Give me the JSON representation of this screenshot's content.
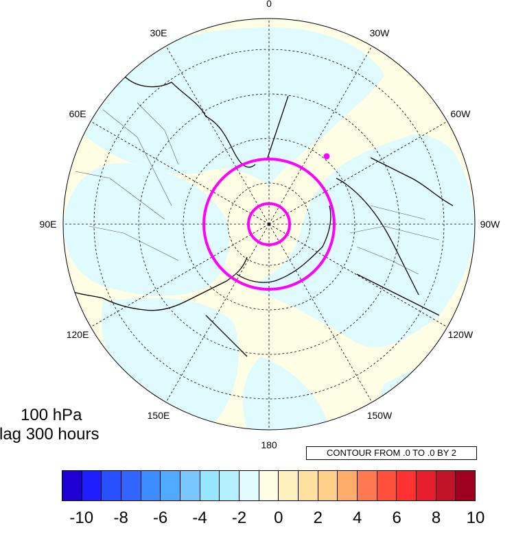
{
  "map": {
    "projection": "polar stereographic, north pole",
    "longitude_labels": [
      "0",
      "30W",
      "60W",
      "90W",
      "120W",
      "150W",
      "180",
      "150E",
      "120E",
      "90E",
      "60E",
      "30E"
    ],
    "colors": {
      "negative_shade": "#e0fbfd",
      "positive_shade": "#fefee4",
      "contour_circles": "#ff00ff",
      "coastlines": "#000000"
    }
  },
  "title": {
    "level": "100 hPa",
    "lag": "lag 300 hours"
  },
  "contour_info": "CONTOUR FROM .0 TO .0 BY 2",
  "colorbar": {
    "labels": [
      "-10",
      "-8",
      "-6",
      "-4",
      "-2",
      "0",
      "2",
      "4",
      "6",
      "8",
      "10"
    ],
    "colors": [
      "#1e00d2",
      "#1e1eff",
      "#2850ff",
      "#3264ff",
      "#3c8cff",
      "#50aaff",
      "#78c8ff",
      "#96e6ff",
      "#b4f0ff",
      "#e0fbfd",
      "#fefee4",
      "#fff0c0",
      "#ffe09c",
      "#ffd08a",
      "#ffac6a",
      "#ff7850",
      "#ff503c",
      "#ff3232",
      "#e61e2d",
      "#c01428",
      "#9e0020"
    ]
  }
}
